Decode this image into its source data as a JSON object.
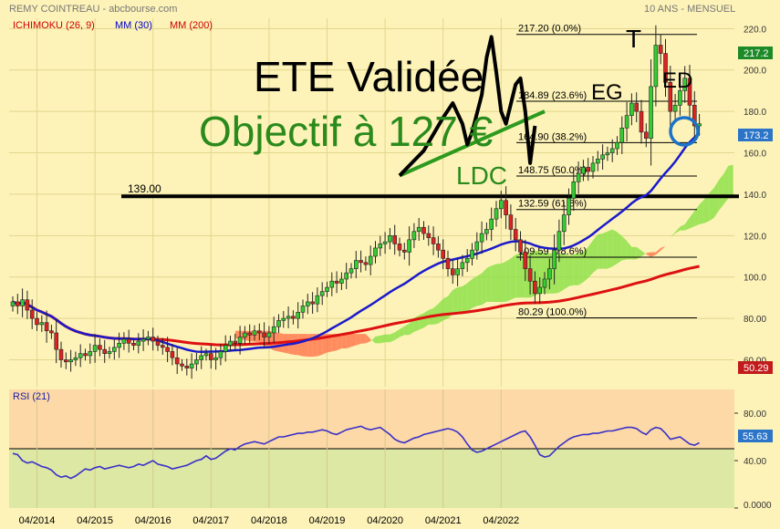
{
  "header": {
    "title": "REMY COINTREAU - abcbourse.com",
    "period": "10 ANS - MENSUEL",
    "legend": [
      {
        "label": "ICHIMOKU (26, 9)",
        "color": "#cc0000"
      },
      {
        "label": "MM (30)",
        "color": "#0000cc"
      },
      {
        "label": "MM (200)",
        "color": "#cc0000"
      }
    ]
  },
  "annotations": {
    "headline": "ETE Validée",
    "target": "Objectif à 127 €",
    "neckline_label": "LDC",
    "left_shoulder": "EG",
    "head": "T",
    "right_shoulder": "ED",
    "support_label": "139.00"
  },
  "badges": {
    "last_price": "173.2",
    "top_price": "217.2",
    "lower_value": "50.29",
    "rsi_value": "55.63"
  },
  "chart_data": [
    {
      "type": "candlestick",
      "x_labels": [
        "04/2014",
        "04/2015",
        "04/2016",
        "04/2017",
        "04/2018",
        "04/2019",
        "04/2020",
        "04/2021",
        "04/2022"
      ],
      "y_ticks": [
        "60.00",
        "80.00",
        "100.0",
        "120.0",
        "140.0",
        "160.0",
        "180.0",
        "200.0",
        "220.0"
      ],
      "ylim": [
        47,
        225
      ],
      "start": "2013-11",
      "closes": [
        88,
        86,
        89,
        84,
        80,
        77,
        78,
        74,
        73,
        65,
        60,
        59,
        60,
        61,
        63,
        62,
        64,
        67,
        65,
        63,
        64,
        66,
        68,
        70,
        68,
        67,
        69,
        70,
        71,
        69,
        67,
        66,
        64,
        61,
        58,
        57,
        56,
        58,
        60,
        62,
        63,
        60,
        61,
        64,
        67,
        69,
        68,
        71,
        73,
        72,
        74,
        73,
        71,
        73,
        76,
        79,
        80,
        81,
        80,
        83,
        86,
        88,
        87,
        91,
        93,
        95,
        98,
        97,
        99,
        102,
        104,
        108,
        107,
        106,
        110,
        114,
        116,
        117,
        120,
        116,
        113,
        112,
        118,
        122,
        124,
        121,
        119,
        116,
        113,
        109,
        104,
        101,
        104,
        107,
        109,
        113,
        117,
        121,
        123,
        128,
        133,
        137,
        130,
        123,
        118,
        112,
        104,
        98,
        92,
        95,
        99,
        104,
        113,
        122,
        130,
        138,
        146,
        150,
        153,
        151,
        155,
        157,
        159,
        160,
        162,
        165,
        172,
        178,
        184,
        180,
        170,
        167,
        192,
        212,
        208,
        194,
        180,
        183,
        190,
        196,
        183,
        173,
        174
      ],
      "fibonacci": [
        {
          "value": 217.2,
          "label": "217.20 (0.0%)"
        },
        {
          "value": 184.89,
          "label": "184.89 (23.6%)"
        },
        {
          "value": 164.9,
          "label": "164.90 (38.2%)"
        },
        {
          "value": 148.75,
          "label": "148.75 (50.0%)"
        },
        {
          "value": 132.59,
          "label": "132.59 (61.8%)"
        },
        {
          "value": 109.59,
          "label": "109.59 (78.6%)"
        },
        {
          "value": 80.29,
          "label": "80.29 (100.0%)"
        }
      ],
      "support": 139,
      "neckline": {
        "from": [
          "2020-07",
          149
        ],
        "to": [
          "2023-01",
          180
        ]
      },
      "pattern_points": [
        [
          "2020-07",
          149
        ],
        [
          "2020-12",
          161
        ],
        [
          "2021-04",
          177
        ],
        [
          "2021-06",
          184
        ],
        [
          "2021-08",
          174
        ],
        [
          "2021-09",
          164
        ],
        [
          "2021-10",
          170
        ],
        [
          "2021-12",
          188
        ],
        [
          "2022-01",
          206
        ],
        [
          "2022-02",
          216
        ],
        [
          "2022-03",
          199
        ],
        [
          "2022-04",
          180
        ],
        [
          "2022-05",
          174
        ],
        [
          "2022-07",
          193
        ],
        [
          "2022-08",
          196
        ],
        [
          "2022-09",
          180
        ],
        [
          "2022-10",
          155
        ],
        [
          "2022-11",
          173
        ]
      ]
    },
    {
      "type": "line",
      "name": "RSI (21)",
      "y_ticks": [
        "0.0000",
        "40.00",
        "80.00"
      ],
      "ylim": [
        0,
        100
      ],
      "reference_level": 50,
      "values": [
        46,
        45,
        40,
        38,
        39,
        37,
        35,
        34,
        32,
        28,
        26,
        27,
        25,
        27,
        30,
        33,
        32,
        34,
        35,
        33,
        34,
        35,
        36,
        35,
        34,
        35,
        37,
        36,
        38,
        40,
        37,
        36,
        35,
        33,
        34,
        35,
        36,
        38,
        40,
        41,
        44,
        41,
        42,
        45,
        48,
        50,
        49,
        52,
        54,
        55,
        56,
        55,
        54,
        56,
        58,
        60,
        60,
        61,
        62,
        63,
        63,
        64,
        64,
        65,
        66,
        65,
        63,
        62,
        64,
        66,
        67,
        68,
        69,
        67,
        66,
        67,
        68,
        65,
        62,
        58,
        56,
        55,
        57,
        59,
        60,
        62,
        63,
        64,
        65,
        66,
        67,
        66,
        64,
        60,
        54,
        49,
        47,
        48,
        50,
        52,
        54,
        56,
        58,
        60,
        62,
        64,
        65,
        60,
        53,
        45,
        43,
        44,
        48,
        52,
        55,
        58,
        60,
        61,
        62,
        62,
        63,
        63,
        64,
        65,
        65,
        66,
        67,
        68,
        68,
        67,
        64,
        62,
        66,
        68,
        67,
        63,
        58,
        59,
        60,
        57,
        54,
        53,
        55
      ]
    }
  ]
}
